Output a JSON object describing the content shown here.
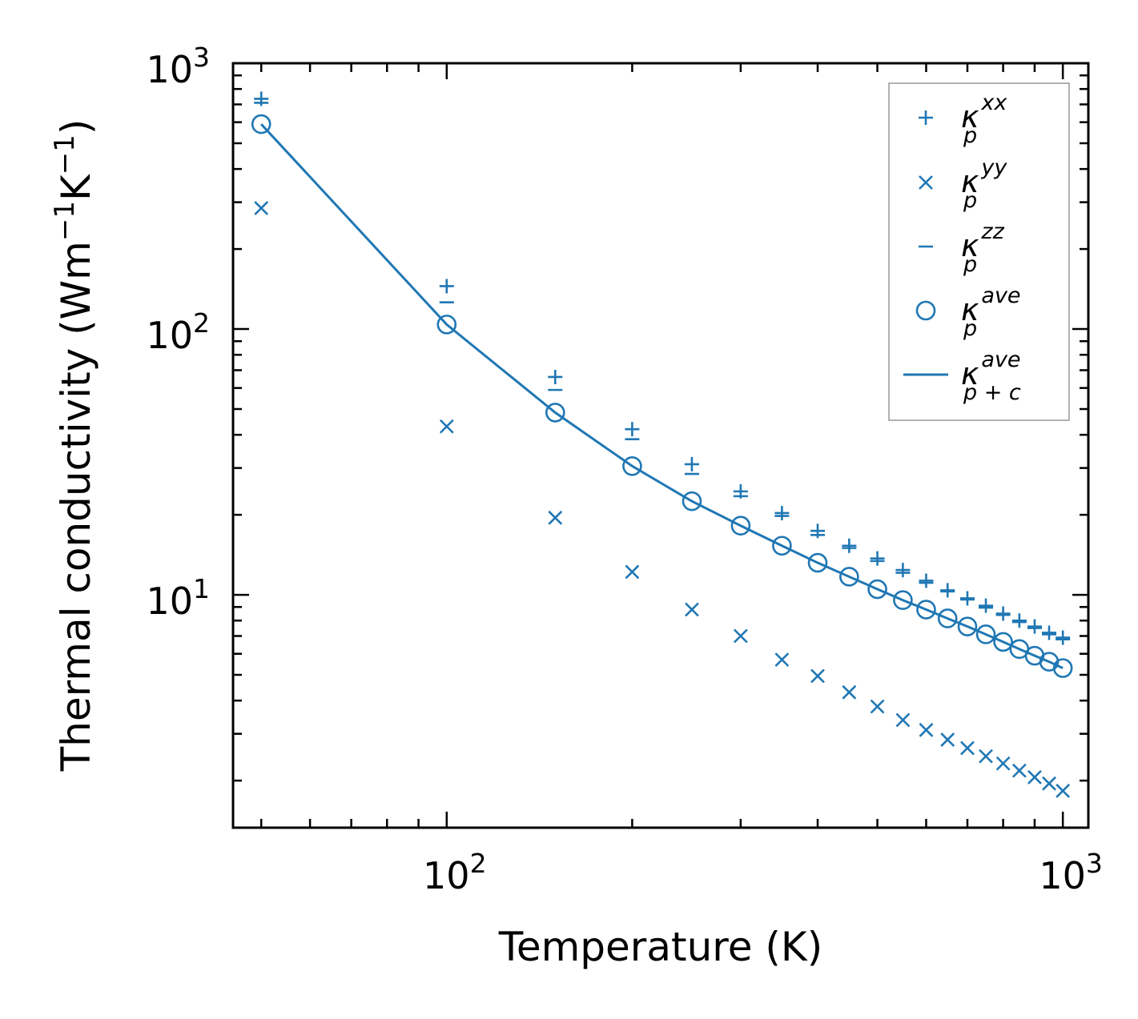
{
  "chart_data": {
    "type": "scatter",
    "xscale": "log",
    "yscale": "log",
    "xlim": [
      45,
      1100
    ],
    "ylim": [
      1.33,
      1000
    ],
    "xlabel": "Temperature (K)",
    "ylabel_parts": [
      "Thermal conductivity (Wm",
      "−1",
      "K",
      "−1",
      ")"
    ],
    "x_ticks": [
      {
        "value": 100,
        "base": "10",
        "exp": "2"
      },
      {
        "value": 1000,
        "base": "10",
        "exp": "3"
      }
    ],
    "y_ticks": [
      {
        "value": 10,
        "base": "10",
        "exp": "1"
      },
      {
        "value": 100,
        "base": "10",
        "exp": "2"
      },
      {
        "value": 1000,
        "base": "10",
        "exp": "3"
      }
    ],
    "color": "#1f77b4",
    "x": [
      50,
      100,
      150,
      200,
      250,
      300,
      350,
      400,
      450,
      500,
      550,
      600,
      650,
      700,
      750,
      800,
      850,
      900,
      950,
      1000
    ],
    "series": [
      {
        "name": "kxx",
        "marker": "plus",
        "values": [
          735,
          145,
          66,
          42,
          31,
          24.5,
          20.3,
          17.4,
          15.3,
          13.7,
          12.4,
          11.3,
          10.4,
          9.7,
          9.1,
          8.5,
          8.0,
          7.6,
          7.2,
          6.9
        ]
      },
      {
        "name": "kyy",
        "marker": "x",
        "values": [
          285,
          43,
          19.5,
          12.2,
          8.8,
          7.0,
          5.7,
          4.95,
          4.3,
          3.8,
          3.38,
          3.1,
          2.85,
          2.65,
          2.47,
          2.32,
          2.18,
          2.06,
          1.95,
          1.83
        ]
      },
      {
        "name": "kzz",
        "marker": "hline",
        "values": [
          710,
          126,
          59,
          38.5,
          28.5,
          23.5,
          19.8,
          16.8,
          15.0,
          13.4,
          12.1,
          11.1,
          10.3,
          9.6,
          8.95,
          8.4,
          7.9,
          7.5,
          7.1,
          6.8
        ]
      },
      {
        "name": "kave",
        "marker": "circle",
        "values": [
          590,
          104,
          48.5,
          30.5,
          22.5,
          18.2,
          15.3,
          13.2,
          11.7,
          10.5,
          9.55,
          8.8,
          8.15,
          7.6,
          7.1,
          6.65,
          6.25,
          5.9,
          5.6,
          5.3
        ]
      },
      {
        "name": "kpc",
        "marker": "line",
        "values": [
          590,
          104,
          48.5,
          30.5,
          22.5,
          18.2,
          15.3,
          13.2,
          11.7,
          10.5,
          9.55,
          8.8,
          8.15,
          7.6,
          7.1,
          6.65,
          6.25,
          5.9,
          5.6,
          5.3
        ]
      }
    ],
    "legend": {
      "position": "upper-right",
      "entries": [
        {
          "series": "kxx",
          "symbol": "κ",
          "sub": "p",
          "sup": "xx"
        },
        {
          "series": "kyy",
          "symbol": "κ",
          "sub": "p",
          "sup": "yy"
        },
        {
          "series": "kzz",
          "symbol": "κ",
          "sub": "p",
          "sup": "zz"
        },
        {
          "series": "kave",
          "symbol": "κ",
          "sub": "p",
          "sup": "ave"
        },
        {
          "series": "kpc",
          "symbol": "κ",
          "sub": "p + c",
          "sup": "ave"
        }
      ]
    }
  }
}
